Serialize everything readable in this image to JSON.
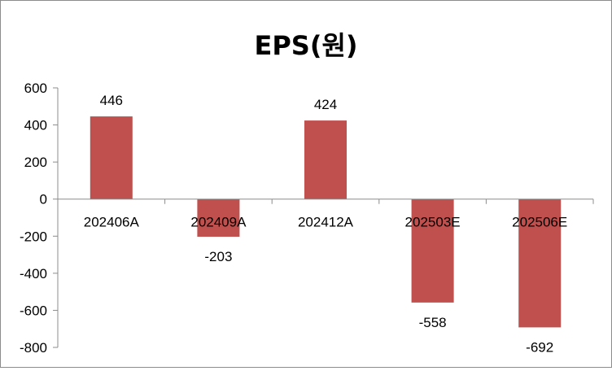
{
  "chart_data": {
    "type": "bar",
    "title": "EPS(원)",
    "categories": [
      "202406A",
      "202409A",
      "202412A",
      "202503E",
      "202506E"
    ],
    "values": [
      446,
      -203,
      424,
      -558,
      -692
    ],
    "data_labels": [
      "446",
      "-203",
      "424",
      "-558",
      "-692"
    ],
    "yticks": [
      600,
      400,
      200,
      0,
      -200,
      -400,
      -600,
      -800
    ],
    "ylim": [
      -800,
      600
    ],
    "xlabel": "",
    "ylabel": "",
    "grid": false,
    "legend": false,
    "bar_color": "#c0504d"
  }
}
